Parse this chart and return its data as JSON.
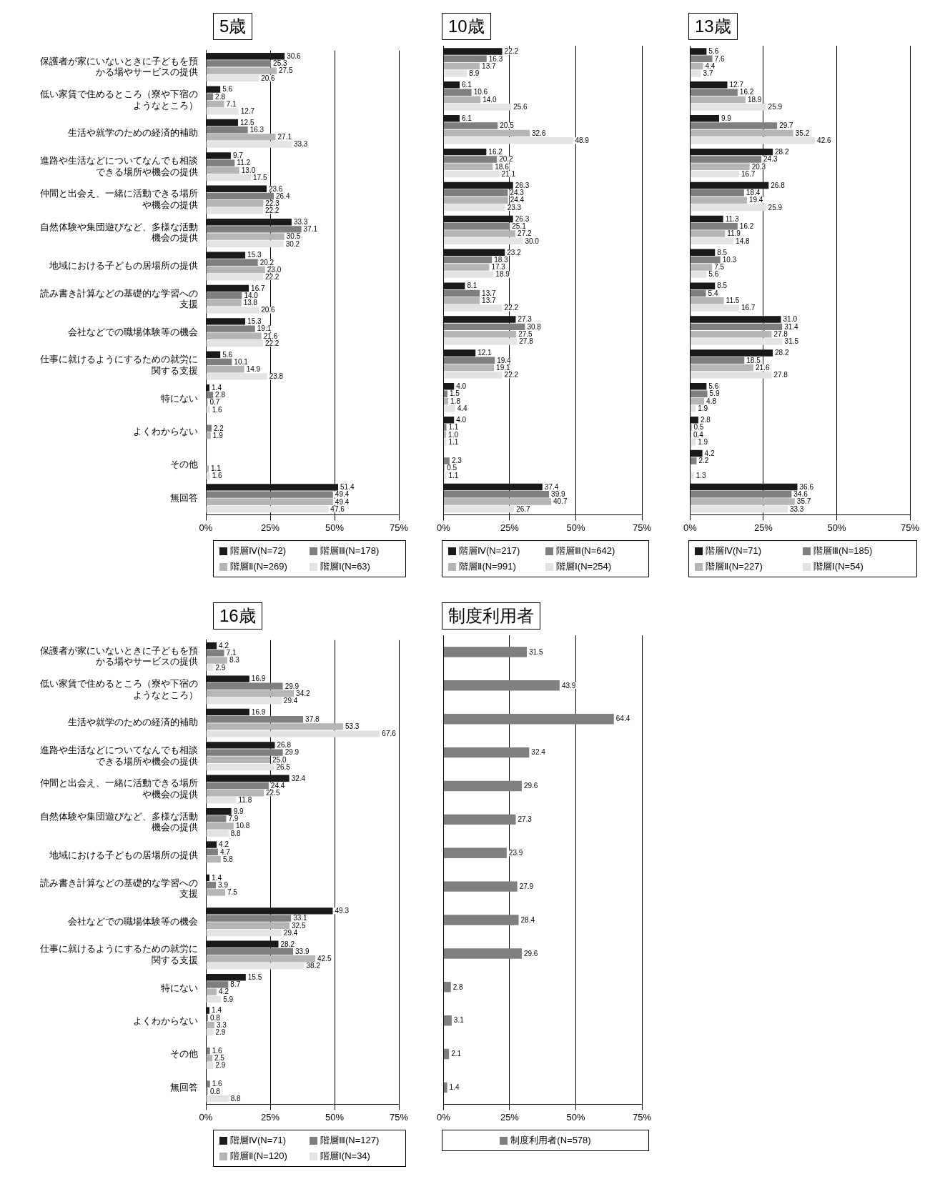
{
  "chart_data": [
    {
      "type": "bar",
      "orientation": "horizontal",
      "title": "5歳",
      "categories": [
        "保護者が家にいないときに子どもを預かる場やサービスの提供",
        "低い家賃で住めるところ（寮や下宿のようなところ）",
        "生活や就学のための経済的補助",
        "進路や生活などについてなんでも相談できる場所や機会の提供",
        "仲間と出会え、一緒に活動できる場所や機会の提供",
        "自然体験や集団遊びなど、多様な活動機会の提供",
        "地域における子どもの居場所の提供",
        "読み書き計算などの基礎的な学習への支援",
        "会社などでの職場体験等の機会",
        "仕事に就けるようにするための就労に関する支援",
        "特にない",
        "よくわからない",
        "その他",
        "無回答"
      ],
      "series": [
        {
          "name": "階層Ⅳ(N=72)",
          "color": "#1a1a1a",
          "values": [
            30.6,
            5.6,
            12.5,
            9.7,
            23.6,
            33.3,
            15.3,
            16.7,
            15.3,
            5.6,
            1.4,
            null,
            null,
            51.4
          ],
          "value_labels": [
            "30.6",
            "5.6",
            "12.5",
            "9.7",
            "23.6",
            "33.3",
            "15.3",
            "16.7",
            "15.3",
            "5.6",
            "1.4",
            null,
            null,
            "51.4"
          ]
        },
        {
          "name": "階層Ⅲ(N=178)",
          "color": "#7f7f7f",
          "values": [
            25.3,
            2.8,
            16.3,
            11.2,
            26.4,
            37.1,
            20.2,
            14.0,
            19.1,
            10.1,
            2.8,
            2.2,
            null,
            49.4
          ],
          "value_labels": [
            "25.3",
            "2.8",
            "16.3",
            "11.2",
            "26.4",
            "37.1",
            "20.2",
            "14.0",
            "19.1",
            "10.1",
            "2.8",
            "2.2",
            null,
            "49.4"
          ]
        },
        {
          "name": "階層Ⅱ(N=269)",
          "color": "#b5b5b5",
          "values": [
            27.5,
            7.1,
            27.1,
            13.0,
            22.3,
            30.5,
            23.0,
            13.8,
            21.6,
            14.9,
            0.7,
            1.9,
            1.1,
            49.4
          ],
          "value_labels": [
            "27.5",
            "7.1",
            "27.1",
            "13.0",
            "22.3",
            "30.5",
            "23.0",
            "13.8",
            "21.6",
            "14.9",
            "0.7",
            "1.9",
            "1.1",
            "49.4"
          ]
        },
        {
          "name": "階層Ⅰ(N=63)",
          "color": "#e3e3e3",
          "values": [
            20.6,
            12.7,
            33.3,
            17.5,
            22.2,
            30.2,
            22.2,
            20.6,
            22.2,
            23.8,
            1.6,
            null,
            1.6,
            47.6
          ],
          "value_labels": [
            "20.6",
            "12.7",
            "33.3",
            "17.5",
            "22.2",
            "30.2",
            "22.2",
            "20.6",
            "22.2",
            "23.8",
            "1.6",
            null,
            "1.6",
            "47.6"
          ]
        }
      ],
      "xlim": [
        0,
        75
      ],
      "xticks": [
        {
          "value": 0,
          "label": "0%"
        },
        {
          "value": 25,
          "label": "25%"
        },
        {
          "value": 50,
          "label": "50%"
        },
        {
          "value": 75,
          "label": "75%"
        }
      ],
      "grid": "x",
      "legend": "bottom"
    },
    {
      "type": "bar",
      "orientation": "horizontal",
      "title": "10歳",
      "categories": [
        "保護者が家にいないときに子どもを預かる場やサービスの提供",
        "低い家賃で住めるところ（寮や下宿のようなところ）",
        "生活や就学のための経済的補助",
        "進路や生活などについてなんでも相談できる場所や機会の提供",
        "仲間と出会え、一緒に活動できる場所や機会の提供",
        "自然体験や集団遊びなど、多様な活動機会の提供",
        "地域における子どもの居場所の提供",
        "読み書き計算などの基礎的な学習への支援",
        "会社などでの職場体験等の機会",
        "仕事に就けるようにするための就労に関する支援",
        "特にない",
        "よくわからない",
        "その他",
        "無回答"
      ],
      "series": [
        {
          "name": "階層Ⅳ(N=217)",
          "color": "#1a1a1a",
          "values": [
            22.2,
            6.1,
            6.1,
            16.2,
            26.3,
            26.3,
            23.2,
            8.1,
            27.3,
            12.1,
            4.0,
            4.0,
            null,
            37.4
          ],
          "value_labels": [
            "22.2",
            "6.1",
            "6.1",
            "16.2",
            "26.3",
            "26.3",
            "23.2",
            "8.1",
            "27.3",
            "12.1",
            "4.0",
            "4.0",
            null,
            "37.4"
          ]
        },
        {
          "name": "階層Ⅲ(N=642)",
          "color": "#7f7f7f",
          "values": [
            16.3,
            10.6,
            20.5,
            20.2,
            24.3,
            25.1,
            18.3,
            13.7,
            30.8,
            19.4,
            1.5,
            1.1,
            2.3,
            39.9
          ],
          "value_labels": [
            "16.3",
            "10.6",
            "20.5",
            "20.2",
            "24.3",
            "25.1",
            "18.3",
            "13.7",
            "30.8",
            "19.4",
            "1.5",
            "1.1",
            "2.3",
            "39.9"
          ]
        },
        {
          "name": "階層Ⅱ(N=991)",
          "color": "#b5b5b5",
          "values": [
            13.7,
            14.0,
            32.6,
            18.6,
            24.4,
            27.2,
            17.3,
            13.7,
            27.5,
            19.1,
            1.8,
            1.0,
            0.5,
            40.7
          ],
          "value_labels": [
            "13.7",
            "14.0",
            "32.6",
            "18.6",
            "24.4",
            "27.2",
            "17.3",
            "13.7",
            "27.5",
            "19.1",
            "1.8",
            "1.0",
            "0.5",
            "40.7"
          ]
        },
        {
          "name": "階層Ⅰ(N=254)",
          "color": "#e3e3e3",
          "values": [
            8.9,
            25.6,
            48.9,
            21.1,
            23.3,
            30.0,
            18.9,
            22.2,
            27.8,
            22.2,
            4.4,
            1.1,
            1.1,
            26.7
          ],
          "value_labels": [
            "8.9",
            "25.6",
            "48.9",
            "21.1",
            "23.3",
            "30.0",
            "18.9",
            "22.2",
            "27.8",
            "22.2",
            "4.4",
            "1.1",
            "1.1",
            "26.7"
          ]
        }
      ],
      "xlim": [
        0,
        75
      ],
      "xticks": [
        {
          "value": 0,
          "label": "0%"
        },
        {
          "value": 25,
          "label": "25%"
        },
        {
          "value": 50,
          "label": "50%"
        },
        {
          "value": 75,
          "label": "75%"
        }
      ],
      "grid": "x",
      "legend": "bottom",
      "tick_labels": "x"
    },
    {
      "type": "bar",
      "orientation": "horizontal",
      "title": "13歳",
      "categories": [
        "保護者が家にいないときに子どもを預かる場やサービスの提供",
        "低い家賃で住めるところ（寮や下宿のようなところ）",
        "生活や就学のための経済的補助",
        "進路や生活などについてなんでも相談できる場所や機会の提供",
        "仲間と出会え、一緒に活動できる場所や機会の提供",
        "自然体験や集団遊びなど、多様な活動機会の提供",
        "地域における子どもの居場所の提供",
        "読み書き計算などの基礎的な学習への支援",
        "会社などでの職場体験等の機会",
        "仕事に就けるようにするための就労に関する支援",
        "特にない",
        "よくわからない",
        "その他",
        "無回答"
      ],
      "series": [
        {
          "name": "階層Ⅳ(N=71)",
          "color": "#1a1a1a",
          "values": [
            5.6,
            12.7,
            9.9,
            28.2,
            26.8,
            11.3,
            8.5,
            8.5,
            31.0,
            28.2,
            5.6,
            2.8,
            4.2,
            36.6
          ],
          "value_labels": [
            "5.6",
            "12.7",
            "9.9",
            "28.2",
            "26.8",
            "11.3",
            "8.5",
            "8.5",
            "31.0",
            "28.2",
            "5.6",
            "2.8",
            "4.2",
            "36.6"
          ]
        },
        {
          "name": "階層Ⅲ(N=185)",
          "color": "#7f7f7f",
          "values": [
            7.6,
            16.2,
            29.7,
            24.3,
            18.4,
            16.2,
            10.3,
            5.4,
            31.4,
            18.5,
            5.9,
            0.5,
            2.2,
            34.6
          ],
          "value_labels": [
            "7.6",
            "16.2",
            "29.7",
            "24.3",
            "18.4",
            "16.2",
            "10.3",
            "5.4",
            "31.4",
            "18.5",
            "5.9",
            "0.5",
            "2.2",
            "34.6"
          ]
        },
        {
          "name": "階層Ⅱ(N=227)",
          "color": "#b5b5b5",
          "values": [
            4.4,
            18.9,
            35.2,
            20.3,
            19.4,
            11.9,
            7.5,
            11.5,
            27.8,
            21.6,
            4.8,
            0.4,
            null,
            35.7
          ],
          "value_labels": [
            "4.4",
            "18.9",
            "35.2",
            "20.3",
            "19.4",
            "11.9",
            "7.5",
            "11.5",
            "27.8",
            "21.6",
            "4.8",
            "0.4",
            null,
            "35.7"
          ]
        },
        {
          "name": "階層Ⅰ(N=54)",
          "color": "#e3e3e3",
          "values": [
            3.7,
            25.9,
            42.6,
            16.7,
            25.9,
            14.8,
            5.6,
            16.7,
            31.5,
            27.8,
            1.9,
            1.9,
            1.3,
            33.3
          ],
          "value_labels": [
            "3.7",
            "25.9",
            "42.6",
            "16.7",
            "25.9",
            "14.8",
            "5.6",
            "16.7",
            "31.5",
            "27.8",
            "1.9",
            "1.9",
            "1.3",
            "33.3"
          ]
        }
      ],
      "xlim": [
        0,
        75
      ],
      "xticks": [
        {
          "value": 0,
          "label": "0%"
        },
        {
          "value": 25,
          "label": "25%"
        },
        {
          "value": 50,
          "label": "50%"
        },
        {
          "value": 75,
          "label": "75%"
        }
      ],
      "grid": "x",
      "legend": "bottom",
      "tick_labels": "x"
    },
    {
      "type": "bar",
      "orientation": "horizontal",
      "title": "16歳",
      "categories": [
        "保護者が家にいないときに子どもを預かる場やサービスの提供",
        "低い家賃で住めるところ（寮や下宿のようなところ）",
        "生活や就学のための経済的補助",
        "進路や生活などについてなんでも相談できる場所や機会の提供",
        "仲間と出会え、一緒に活動できる場所や機会の提供",
        "自然体験や集団遊びなど、多様な活動機会の提供",
        "地域における子どもの居場所の提供",
        "読み書き計算などの基礎的な学習への支援",
        "会社などでの職場体験等の機会",
        "仕事に就けるようにするための就労に関する支援",
        "特にない",
        "よくわからない",
        "その他",
        "無回答"
      ],
      "series": [
        {
          "name": "階層Ⅳ(N=71)",
          "color": "#1a1a1a",
          "values": [
            4.2,
            16.9,
            16.9,
            26.8,
            32.4,
            9.9,
            4.2,
            1.4,
            49.3,
            28.2,
            15.5,
            1.4,
            null,
            null
          ],
          "value_labels": [
            "4.2",
            "16.9",
            "16.9",
            "26.8",
            "32.4",
            "9.9",
            "4.2",
            "1.4",
            "49.3",
            "28.2",
            "15.5",
            "1.4",
            null,
            null
          ]
        },
        {
          "name": "階層Ⅲ(N=127)",
          "color": "#7f7f7f",
          "values": [
            7.1,
            29.9,
            37.8,
            29.9,
            24.4,
            7.9,
            4.7,
            3.9,
            33.1,
            33.9,
            8.7,
            0.8,
            1.6,
            1.6
          ],
          "value_labels": [
            "7.1",
            "29.9",
            "37.8",
            "29.9",
            "24.4",
            "7.9",
            "4.7",
            "3.9",
            "33.1",
            "33.9",
            "8.7",
            "0.8",
            "1.6",
            "1.6"
          ]
        },
        {
          "name": "階層Ⅱ(N=120)",
          "color": "#b5b5b5",
          "values": [
            8.3,
            34.2,
            53.3,
            25.0,
            22.5,
            10.8,
            5.8,
            7.5,
            32.5,
            42.5,
            4.2,
            3.3,
            2.5,
            0.8
          ],
          "value_labels": [
            "8.3",
            "34.2",
            "53.3",
            "25.0",
            "22.5",
            "10.8",
            "5.8",
            "7.5",
            "32.5",
            "42.5",
            "4.2",
            "3.3",
            "2.5",
            "0.8"
          ]
        },
        {
          "name": "階層Ⅰ(N=34)",
          "color": "#e3e3e3",
          "values": [
            2.9,
            29.4,
            67.6,
            26.5,
            11.8,
            8.8,
            null,
            null,
            29.4,
            38.2,
            5.9,
            2.9,
            2.9,
            8.8
          ],
          "value_labels": [
            "2.9",
            "29.4",
            "67.6",
            "26.5",
            "11.8",
            "8.8",
            null,
            null,
            "29.4",
            "38.2",
            "5.9",
            "2.9",
            "2.9",
            "8.8"
          ]
        }
      ],
      "xlim": [
        0,
        75
      ],
      "xticks": [
        {
          "value": 0,
          "label": "0%"
        },
        {
          "value": 25,
          "label": "25%"
        },
        {
          "value": 50,
          "label": "50%"
        },
        {
          "value": 75,
          "label": "75%"
        }
      ],
      "grid": "x",
      "legend": "bottom"
    },
    {
      "type": "bar",
      "orientation": "horizontal",
      "title": "制度利用者",
      "categories": [
        "保護者が家にいないときに子どもを預かる場やサービスの提供",
        "低い家賃で住めるところ（寮や下宿のようなところ）",
        "生活や就学のための経済的補助",
        "進路や生活などについてなんでも相談できる場所や機会の提供",
        "仲間と出会え、一緒に活動できる場所や機会の提供",
        "自然体験や集団遊びなど、多様な活動機会の提供",
        "地域における子どもの居場所の提供",
        "読み書き計算などの基礎的な学習への支援",
        "会社などでの職場体験等の機会",
        "仕事に就けるようにするための就労に関する支援",
        "特にない",
        "よくわからない",
        "その他",
        "無回答"
      ],
      "series": [
        {
          "name": "制度利用者(N=578)",
          "color": "#7f7f7f",
          "values": [
            31.5,
            43.9,
            64.4,
            32.4,
            29.6,
            27.3,
            23.9,
            27.9,
            28.4,
            29.6,
            2.8,
            3.1,
            2.1,
            1.4
          ],
          "value_labels": [
            "31.5",
            "43.9",
            "64.4",
            "32.4",
            "29.6",
            "27.3",
            "23.9",
            "27.9",
            "28.4",
            "29.6",
            "2.8",
            "3.1",
            "2.1",
            "1.4"
          ]
        }
      ],
      "xlim": [
        0,
        75
      ],
      "xticks": [
        {
          "value": 0,
          "label": "0%"
        },
        {
          "value": 25,
          "label": "25%"
        },
        {
          "value": 50,
          "label": "50%"
        },
        {
          "value": 75,
          "label": "75%"
        }
      ],
      "grid": "x",
      "legend": "bottom",
      "tick_labels": "x"
    }
  ]
}
